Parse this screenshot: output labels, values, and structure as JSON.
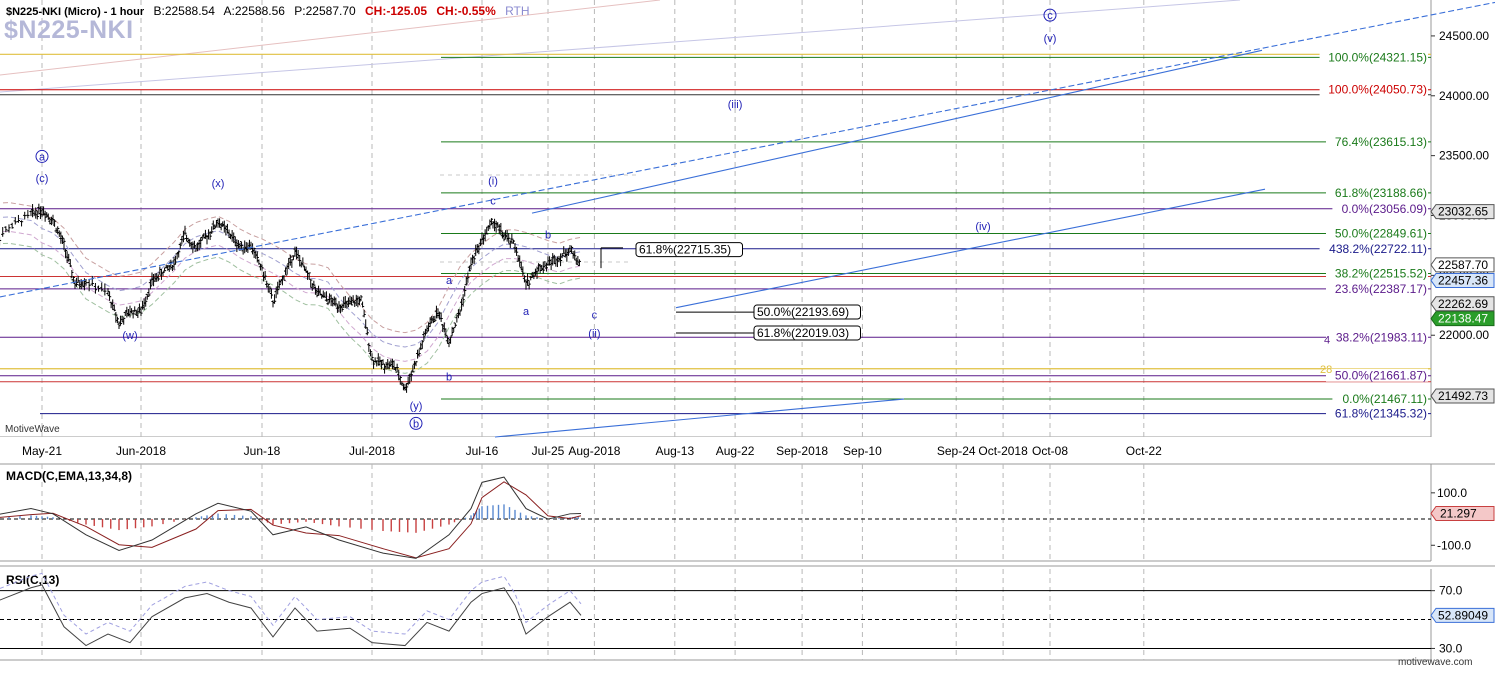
{
  "header": {
    "symbol_line": "$N225-NKI (Micro) - 1 hour",
    "bid": "B:22588.54",
    "ask": "A:22588.56",
    "price": "P:22587.70",
    "change": "CH:-125.05",
    "change_pct": "CH:-0.55%",
    "session": "RTH",
    "watermark_symbol": "$N225-NKI",
    "brand": "MotiveWave",
    "footer_url": "motivewave.com"
  },
  "colors": {
    "price_bar": "#000000",
    "wave_label": "#1f1fb5",
    "fib_green": "#1a7a1a",
    "fib_red": "#cc0000",
    "fib_purple": "#5a1a8a",
    "fib_navy": "#1a1a8a",
    "trend_blue": "#3a6fd8",
    "change_red": "#cc0000",
    "rth": "#8a8ad0"
  },
  "chart_data": [
    {
      "type": "ohlc",
      "panel": "price",
      "title": "$N225-NKI (Micro) - 1 hour",
      "x_axis_labels": [
        "May-21",
        "Jun-2018",
        "Jun-18",
        "Jul-2018",
        "Jul-16",
        "Jul-25",
        "Aug-2018",
        "Aug-13",
        "Aug-22",
        "Sep-2018",
        "Sep-10",
        "Sep-24",
        "Oct-2018",
        "Oct-08",
        "Oct-22"
      ],
      "y_ticks": [
        "24500.00",
        "24000.00",
        "23500.00",
        "23000.00",
        "22500.00",
        "22000.00"
      ],
      "ylim": [
        21150,
        24800
      ],
      "close_path": [
        {
          "x": "May-14",
          "v": 22720
        },
        {
          "x": "May-16",
          "v": 22900
        },
        {
          "x": "May-18",
          "v": 23010
        },
        {
          "x": "May-21",
          "v": 23050
        },
        {
          "x": "May-22",
          "v": 22960
        },
        {
          "x": "May-23",
          "v": 22750
        },
        {
          "x": "May-24",
          "v": 22430
        },
        {
          "x": "May-25",
          "v": 22450
        },
        {
          "x": "May-29",
          "v": 22350
        },
        {
          "x": "May-30",
          "v": 22100
        },
        {
          "x": "May-31",
          "v": 22200
        },
        {
          "x": "Jun-01",
          "v": 22200
        },
        {
          "x": "Jun-04",
          "v": 22450
        },
        {
          "x": "Jun-05",
          "v": 22530
        },
        {
          "x": "Jun-06",
          "v": 22600
        },
        {
          "x": "Jun-07",
          "v": 22840
        },
        {
          "x": "Jun-08",
          "v": 22730
        },
        {
          "x": "Jun-11",
          "v": 22830
        },
        {
          "x": "Jun-12",
          "v": 22950
        },
        {
          "x": "Jun-13",
          "v": 22850
        },
        {
          "x": "Jun-14",
          "v": 22740
        },
        {
          "x": "Jun-15",
          "v": 22750
        },
        {
          "x": "Jun-18",
          "v": 22550
        },
        {
          "x": "Jun-19",
          "v": 22280
        },
        {
          "x": "Jun-20",
          "v": 22500
        },
        {
          "x": "Jun-21",
          "v": 22700
        },
        {
          "x": "Jun-22",
          "v": 22530
        },
        {
          "x": "Jun-25",
          "v": 22350
        },
        {
          "x": "Jun-26",
          "v": 22300
        },
        {
          "x": "Jun-27",
          "v": 22250
        },
        {
          "x": "Jun-28",
          "v": 22260
        },
        {
          "x": "Jun-29",
          "v": 22300
        },
        {
          "x": "Jul-02",
          "v": 21800
        },
        {
          "x": "Jul-03",
          "v": 21760
        },
        {
          "x": "Jul-04",
          "v": 21750
        },
        {
          "x": "Jul-05",
          "v": 21550
        },
        {
          "x": "Jul-06",
          "v": 21780
        },
        {
          "x": "Jul-09",
          "v": 22050
        },
        {
          "x": "Jul-10",
          "v": 22200
        },
        {
          "x": "Jul-11",
          "v": 21950
        },
        {
          "x": "Jul-12",
          "v": 22200
        },
        {
          "x": "Jul-13",
          "v": 22600
        },
        {
          "x": "Jul-17",
          "v": 22800
        },
        {
          "x": "Jul-18",
          "v": 22950
        },
        {
          "x": "Jul-19",
          "v": 22830
        },
        {
          "x": "Jul-20",
          "v": 22750
        },
        {
          "x": "Jul-23",
          "v": 22420
        },
        {
          "x": "Jul-24",
          "v": 22550
        },
        {
          "x": "Jul-25",
          "v": 22600
        },
        {
          "x": "Jul-26",
          "v": 22650
        },
        {
          "x": "Jul-27",
          "v": 22715
        },
        {
          "x": "Jul-30",
          "v": 22588
        }
      ],
      "fib_levels": [
        {
          "label": "100.0%(24321.15)",
          "value": 24321.15,
          "color": "green"
        },
        {
          "label": "100.0%(24050.73)",
          "value": 24050.73,
          "color": "red"
        },
        {
          "label": "76.4%(23615.13)",
          "value": 23615.13,
          "color": "green"
        },
        {
          "label": "61.8%(23188.66)",
          "value": 23188.66,
          "color": "green"
        },
        {
          "label": "0.0%(23056.09)",
          "value": 23056.09,
          "color": "purple"
        },
        {
          "label": "50.0%(22849.61)",
          "value": 22849.61,
          "color": "green"
        },
        {
          "label": "438.2%(22722.11)",
          "value": 22722.11,
          "color": "navy"
        },
        {
          "label": "38.2%(22515.52)",
          "value": 22515.52,
          "color": "green"
        },
        {
          "label": "23.6%(22387.17)",
          "value": 22387.17,
          "color": "purple"
        },
        {
          "label": "38.2%(21983.11)",
          "value": 21983.11,
          "color": "purple"
        },
        {
          "label": "50.0%(21661.87)",
          "value": 21661.87,
          "color": "purple"
        },
        {
          "label": "0.0%(21467.11)",
          "value": 21467.11,
          "color": "green"
        },
        {
          "label": "61.8%(21345.32)",
          "value": 21345.32,
          "color": "navy"
        }
      ],
      "level_boxes": [
        {
          "label": "61.8%(22715.35)",
          "value": 22715.35
        },
        {
          "label": "50.0%(22193.69)",
          "value": 22193.69
        },
        {
          "label": "61.8%(22019.03)",
          "value": 22019.03
        }
      ],
      "price_markers": [
        {
          "label": "23032.65",
          "value": 23032.65,
          "style": "gray"
        },
        {
          "label": "22587.70",
          "value": 22587.7,
          "style": "white"
        },
        {
          "label": "22457.36",
          "value": 22457.36,
          "style": "blue"
        },
        {
          "label": "22262.69",
          "value": 22262.69,
          "style": "gray"
        },
        {
          "label": "22138.47",
          "value": 22138.47,
          "style": "green"
        },
        {
          "label": "21492.73",
          "value": 21492.73,
          "style": "gray"
        }
      ],
      "wave_labels": [
        {
          "text": "a",
          "circled": true,
          "x": "May-21",
          "v": 23460
        },
        {
          "text": "(c)",
          "x": "May-21",
          "v": 23280
        },
        {
          "text": "(x)",
          "x": "Jun-12",
          "v": 23240
        },
        {
          "text": "(w)",
          "x": "May-31",
          "v": 21970
        },
        {
          "text": "(i)",
          "x": "Jul-18",
          "v": 23260
        },
        {
          "text": "c",
          "x": "Jul-18",
          "v": 23090
        },
        {
          "text": "b",
          "x": "Jul-25",
          "v": 22810
        },
        {
          "text": "a",
          "x": "Jul-11",
          "v": 22430
        },
        {
          "text": "a",
          "x": "Jul-23",
          "v": 22170
        },
        {
          "text": "b",
          "x": "Jul-11",
          "v": 21620
        },
        {
          "text": "(y)",
          "x": "Jul-06",
          "v": 21380
        },
        {
          "text": "b",
          "circled": true,
          "x": "Jul-06",
          "v": 21230
        },
        {
          "text": "c",
          "x": "Aug-01",
          "v": 22140
        },
        {
          "text": "(ii)",
          "x": "Aug-01",
          "v": 21985
        },
        {
          "text": "(iii)",
          "x": "Aug-22",
          "v": 23900
        },
        {
          "text": "(iv)",
          "x": "Sep-28",
          "v": 22880
        },
        {
          "text": "(v)",
          "x": "Oct-08",
          "v": 24450
        },
        {
          "text": "c",
          "circled": true,
          "x": "Oct-08",
          "v": 24640
        }
      ],
      "level_tags": [
        "4",
        "28"
      ]
    },
    {
      "type": "line",
      "panel": "macd",
      "title": "MACD(C,EMA,13,34,8)",
      "y_ticks": [
        "100.0",
        "-100.0"
      ],
      "current_value": "21.297",
      "ylim": [
        -160,
        210
      ],
      "series": [
        {
          "x": "May-14",
          "v": 10
        },
        {
          "x": "May-18",
          "v": 40
        },
        {
          "x": "May-22",
          "v": 20
        },
        {
          "x": "May-25",
          "v": -60
        },
        {
          "x": "May-30",
          "v": -120
        },
        {
          "x": "Jun-04",
          "v": -80
        },
        {
          "x": "Jun-08",
          "v": 20
        },
        {
          "x": "Jun-12",
          "v": 60
        },
        {
          "x": "Jun-15",
          "v": 30
        },
        {
          "x": "Jun-19",
          "v": -60
        },
        {
          "x": "Jun-22",
          "v": -30
        },
        {
          "x": "Jun-27",
          "v": -80
        },
        {
          "x": "Jul-03",
          "v": -130
        },
        {
          "x": "Jul-06",
          "v": -150
        },
        {
          "x": "Jul-11",
          "v": -60
        },
        {
          "x": "Jul-13",
          "v": 40
        },
        {
          "x": "Jul-17",
          "v": 140
        },
        {
          "x": "Jul-19",
          "v": 160
        },
        {
          "x": "Jul-23",
          "v": 40
        },
        {
          "x": "Jul-25",
          "v": 0
        },
        {
          "x": "Jul-27",
          "v": 20
        },
        {
          "x": "Jul-30",
          "v": 21.297
        }
      ]
    },
    {
      "type": "line",
      "panel": "rsi",
      "title": "RSI(C,13)",
      "y_ticks": [
        "70.0",
        "30.0"
      ],
      "current_value": "52.89049",
      "ylim": [
        22,
        85
      ],
      "series": [
        {
          "x": "May-14",
          "v": 60
        },
        {
          "x": "May-18",
          "v": 72
        },
        {
          "x": "May-21",
          "v": 74
        },
        {
          "x": "May-23",
          "v": 45
        },
        {
          "x": "May-25",
          "v": 32
        },
        {
          "x": "May-29",
          "v": 40
        },
        {
          "x": "May-31",
          "v": 34
        },
        {
          "x": "Jun-04",
          "v": 52
        },
        {
          "x": "Jun-07",
          "v": 65
        },
        {
          "x": "Jun-11",
          "v": 68
        },
        {
          "x": "Jun-13",
          "v": 62
        },
        {
          "x": "Jun-15",
          "v": 58
        },
        {
          "x": "Jun-19",
          "v": 38
        },
        {
          "x": "Jun-21",
          "v": 58
        },
        {
          "x": "Jun-25",
          "v": 42
        },
        {
          "x": "Jun-28",
          "v": 44
        },
        {
          "x": "Jul-02",
          "v": 34
        },
        {
          "x": "Jul-05",
          "v": 32
        },
        {
          "x": "Jul-09",
          "v": 48
        },
        {
          "x": "Jul-11",
          "v": 42
        },
        {
          "x": "Jul-13",
          "v": 62
        },
        {
          "x": "Jul-17",
          "v": 68
        },
        {
          "x": "Jul-19",
          "v": 72
        },
        {
          "x": "Jul-20",
          "v": 60
        },
        {
          "x": "Jul-23",
          "v": 40
        },
        {
          "x": "Jul-25",
          "v": 52
        },
        {
          "x": "Jul-27",
          "v": 62
        },
        {
          "x": "Jul-30",
          "v": 52.89
        }
      ]
    }
  ]
}
